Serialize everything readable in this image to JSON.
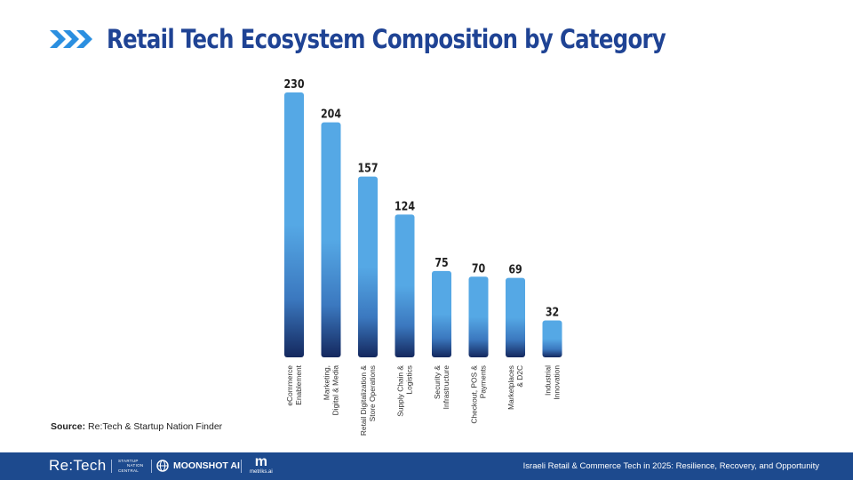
{
  "title": "Retail Tech Ecosystem Composition by Category",
  "chart_data": {
    "type": "bar",
    "title": "",
    "xlabel": "",
    "ylabel": "",
    "ylim": [
      0,
      230
    ],
    "grid": false,
    "legend": "none",
    "categories": [
      [
        "eCommerce",
        "Enablement"
      ],
      [
        "Marketing,",
        "Digital & Media"
      ],
      [
        "Retail Digitalization &",
        "Store Operations"
      ],
      [
        "Supply Chain &",
        "Logistics"
      ],
      [
        "Security &",
        "Infrastructure"
      ],
      [
        "Checkout, POS &",
        "Payments"
      ],
      [
        "Marketplaces",
        "& D2C"
      ],
      [
        "Industrial",
        "Innovation"
      ]
    ],
    "values": [
      230,
      204,
      157,
      124,
      75,
      70,
      69,
      32
    ],
    "bar_gradient": [
      "#55a8e5",
      "#3b78bf",
      "#14285e"
    ],
    "value_label_color": "#1f1f1f",
    "category_label_color": "#333333"
  },
  "source": {
    "label": "Source:",
    "text": "Re:Tech & Startup Nation Finder"
  },
  "footer": {
    "logo_retech": "Re:Tech",
    "logo_snc_line1": "STARTUP",
    "logo_snc_line2": "NATION",
    "logo_snc_line3": "CENTRAL",
    "logo_moonshot": "MOONSHOT AI",
    "logo_metriks_mark": "m",
    "logo_metriks": "metriks.ai",
    "text": "Israeli Retail & Commerce Tech in 2025: Resilience, Recovery, and Opportunity"
  },
  "colors": {
    "title": "#1f4394",
    "chevrons": "#2b8fe0",
    "footer_bg": "#1d4a8e"
  },
  "icons": {
    "title_marker": "triple-chevron-right-icon",
    "moonshot": "globe-icon"
  }
}
